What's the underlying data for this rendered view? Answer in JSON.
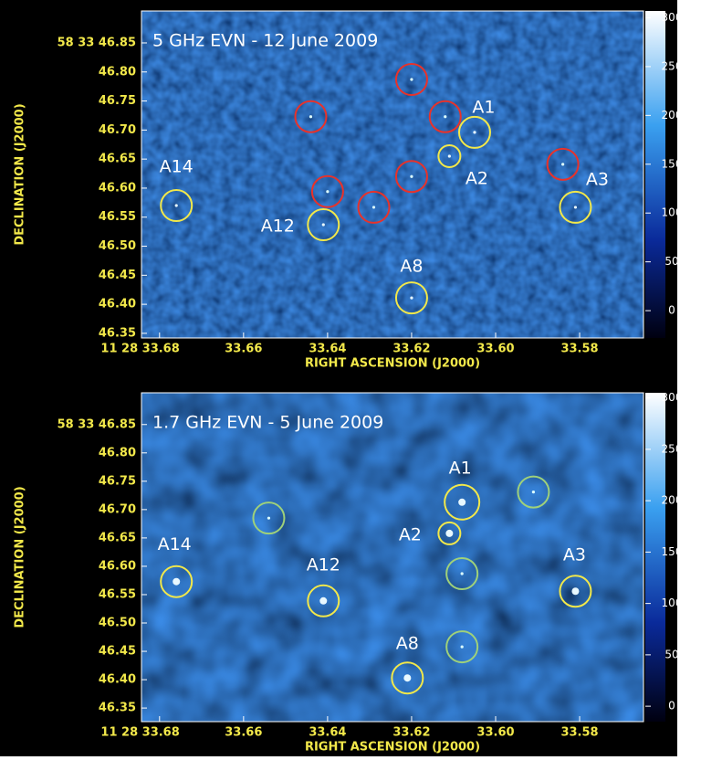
{
  "chart_data": [
    {
      "type": "image",
      "title": "5 GHz EVN - 12 June 2009",
      "xlabel": "RIGHT ASCENSION (J2000)",
      "ylabel": "DECLINATION (J2000)",
      "xlim": [
        33.6843,
        33.5648
      ],
      "ylim": [
        46.342,
        46.905
      ],
      "xticks": [
        {
          "value": 33.68,
          "label": "11 28 33.68"
        },
        33.66,
        33.64,
        33.62,
        {
          "value": 33.6,
          "label": "33.60"
        },
        33.58
      ],
      "yticks": [
        {
          "value": 46.85,
          "label": "58 33 46.85"
        },
        {
          "value": 46.8,
          "label": "46.80"
        },
        46.75,
        {
          "value": 46.7,
          "label": "46.70"
        },
        46.65,
        {
          "value": 46.6,
          "label": "46.60"
        },
        46.55,
        {
          "value": 46.5,
          "label": "46.50"
        },
        46.45,
        {
          "value": 46.4,
          "label": "46.40"
        },
        46.35
      ],
      "clim": [
        -28,
        307
      ],
      "cticks": [
        0,
        50,
        100,
        150,
        200,
        250,
        300
      ],
      "sources": [
        {
          "name": "A1",
          "ra": 33.605,
          "dec": 46.696,
          "color": "#f2e84a"
        },
        {
          "name": "A2",
          "ra": 33.611,
          "dec": 46.655,
          "color": "#f2e84a"
        },
        {
          "name": "A3",
          "ra": 33.581,
          "dec": 46.567,
          "color": "#f2e84a"
        },
        {
          "name": "A12",
          "ra": 33.641,
          "dec": 46.537,
          "color": "#f2e84a"
        },
        {
          "name": "A14",
          "ra": 33.676,
          "dec": 46.57,
          "color": "#f2e84a"
        },
        {
          "name": "A8",
          "ra": 33.62,
          "dec": 46.411,
          "color": "#f2e84a"
        }
      ],
      "circles": {
        "color": "#e8322a",
        "ra": [
          33.62,
          33.644,
          33.612,
          33.584,
          33.62,
          33.64,
          33.629
        ],
        "dec": [
          46.787,
          46.723,
          46.723,
          46.641,
          46.62,
          46.594,
          46.567
        ]
      }
    },
    {
      "type": "image",
      "title": "1.7 GHz EVN - 5 June 2009",
      "xlabel": "RIGHT ASCENSION (J2000)",
      "ylabel": "DECLINATION (J2000)",
      "xlim": [
        33.6843,
        33.5648
      ],
      "ylim": [
        46.326,
        46.906
      ],
      "xticks": [
        {
          "value": 33.68,
          "label": "11 28 33.68"
        },
        33.66,
        33.64,
        33.62,
        {
          "value": 33.6,
          "label": "33.60"
        },
        33.58
      ],
      "yticks": [
        {
          "value": 46.85,
          "label": "58 33 46.85"
        },
        {
          "value": 46.8,
          "label": "46.80"
        },
        46.75,
        {
          "value": 46.7,
          "label": "46.70"
        },
        46.65,
        {
          "value": 46.6,
          "label": "46.60"
        },
        46.55,
        {
          "value": 46.5,
          "label": "46.50"
        },
        46.45,
        {
          "value": 46.4,
          "label": "46.40"
        },
        46.35
      ],
      "clim": [
        -15,
        305
      ],
      "cticks": [
        0,
        50,
        100,
        150,
        200,
        250,
        300
      ],
      "sources": [
        {
          "name": "A1",
          "ra": 33.608,
          "dec": 46.713,
          "color": "#f2e84a"
        },
        {
          "name": "A2",
          "ra": 33.611,
          "dec": 46.658,
          "color": "#f2e84a"
        },
        {
          "name": "A3",
          "ra": 33.581,
          "dec": 46.556,
          "color": "#f2e84a"
        },
        {
          "name": "A12",
          "ra": 33.641,
          "dec": 46.539,
          "color": "#f2e84a"
        },
        {
          "name": "A14",
          "ra": 33.676,
          "dec": 46.573,
          "color": "#f2e84a"
        },
        {
          "name": "A8",
          "ra": 33.621,
          "dec": 46.403,
          "color": "#f2e84a"
        }
      ],
      "circles": {
        "color": "#9fd17a",
        "ra": [
          33.654,
          33.591,
          33.608,
          33.608
        ],
        "dec": [
          46.685,
          46.731,
          46.587,
          46.458
        ]
      }
    }
  ]
}
